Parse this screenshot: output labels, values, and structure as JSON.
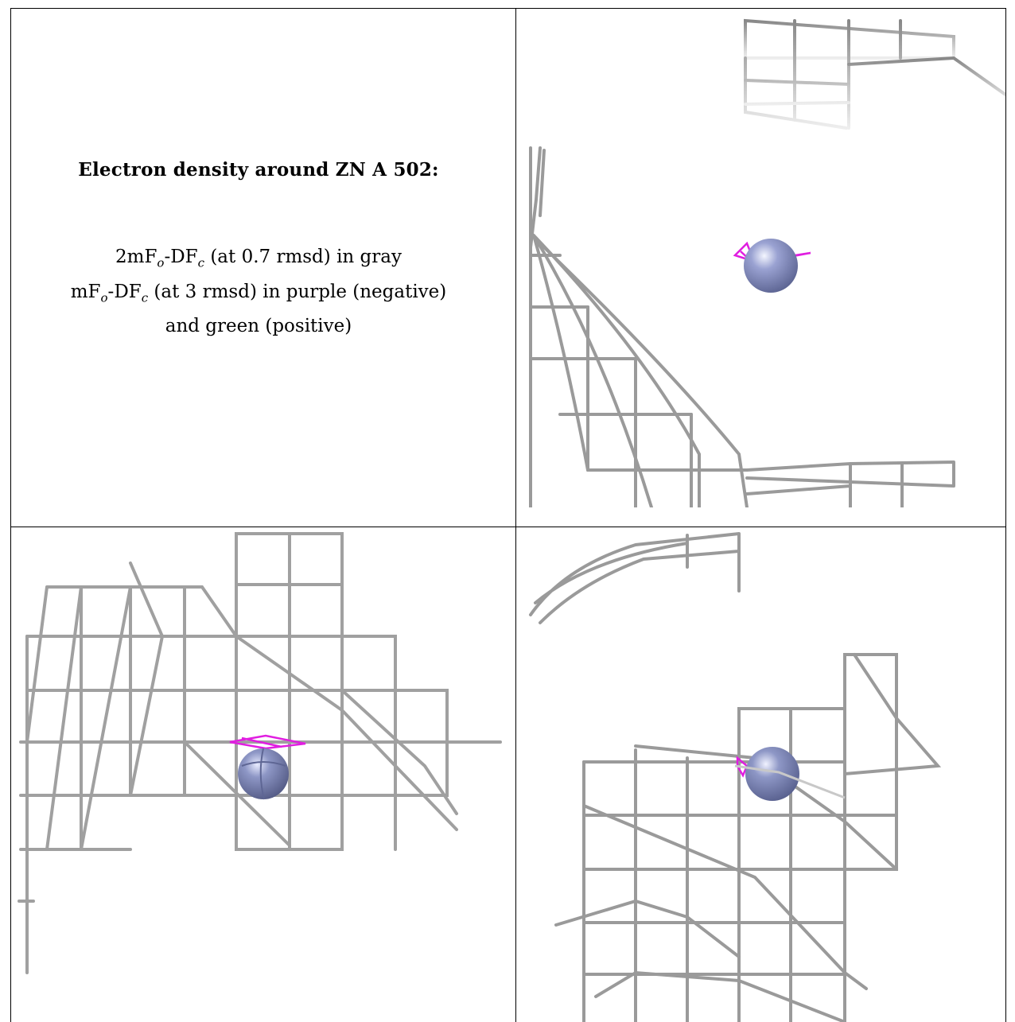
{
  "caption": {
    "title": "Electron density around ZN A 502:",
    "line1_pre": "2mF",
    "line1_sub1": "o",
    "line1_mid": "-DF",
    "line1_sub2": "c",
    "line1_post": " (at 0.7 rmsd) in gray",
    "line2_pre": "mF",
    "line2_sub1": "o",
    "line2_mid": "-DF",
    "line2_sub2": "c",
    "line2_post": " (at 3 rmsd) in purple (negative)",
    "line3": "and green (positive)"
  },
  "panels": [
    {
      "name": "top-right-view",
      "atom": "ZN A 502"
    },
    {
      "name": "bottom-left-view",
      "atom": "ZN A 502"
    },
    {
      "name": "bottom-right-view",
      "atom": "ZN A 502"
    }
  ],
  "colors": {
    "mesh_gray": "#8a8a8a",
    "mesh_light": "#d8d8d8",
    "zinc_sphere": "#8e97c6",
    "negative_density": "#e01ee0",
    "positive_density": "#22aa22"
  }
}
